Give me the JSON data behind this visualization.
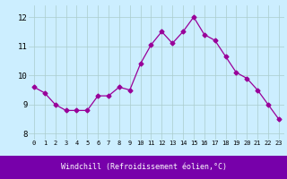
{
  "x": [
    0,
    1,
    2,
    3,
    4,
    5,
    6,
    7,
    8,
    9,
    10,
    11,
    12,
    13,
    14,
    15,
    16,
    17,
    18,
    19,
    20,
    21,
    22,
    23
  ],
  "y": [
    9.6,
    9.4,
    9.0,
    8.8,
    8.8,
    8.8,
    9.3,
    9.3,
    9.6,
    9.5,
    10.4,
    11.05,
    11.5,
    11.1,
    11.5,
    12.0,
    11.4,
    11.2,
    10.65,
    10.1,
    9.9,
    9.5,
    9.0,
    8.5
  ],
  "line_color": "#990099",
  "marker": "D",
  "marker_size": 2.5,
  "bg_color": "#cceeff",
  "grid_color": "#aacccc",
  "xlabel": "Windchill (Refroidissement éolien,°C)",
  "xlabel_color": "#ffffff",
  "xlabel_bg": "#7700aa",
  "ylabel_ticks": [
    8,
    9,
    10,
    11,
    12
  ],
  "xtick_labels": [
    "0",
    "1",
    "2",
    "3",
    "4",
    "5",
    "6",
    "7",
    "8",
    "9",
    "10",
    "11",
    "12",
    "13",
    "14",
    "15",
    "16",
    "17",
    "18",
    "19",
    "20",
    "21",
    "22",
    "23"
  ],
  "ylim": [
    7.8,
    12.4
  ],
  "xlim": [
    -0.5,
    23.5
  ]
}
